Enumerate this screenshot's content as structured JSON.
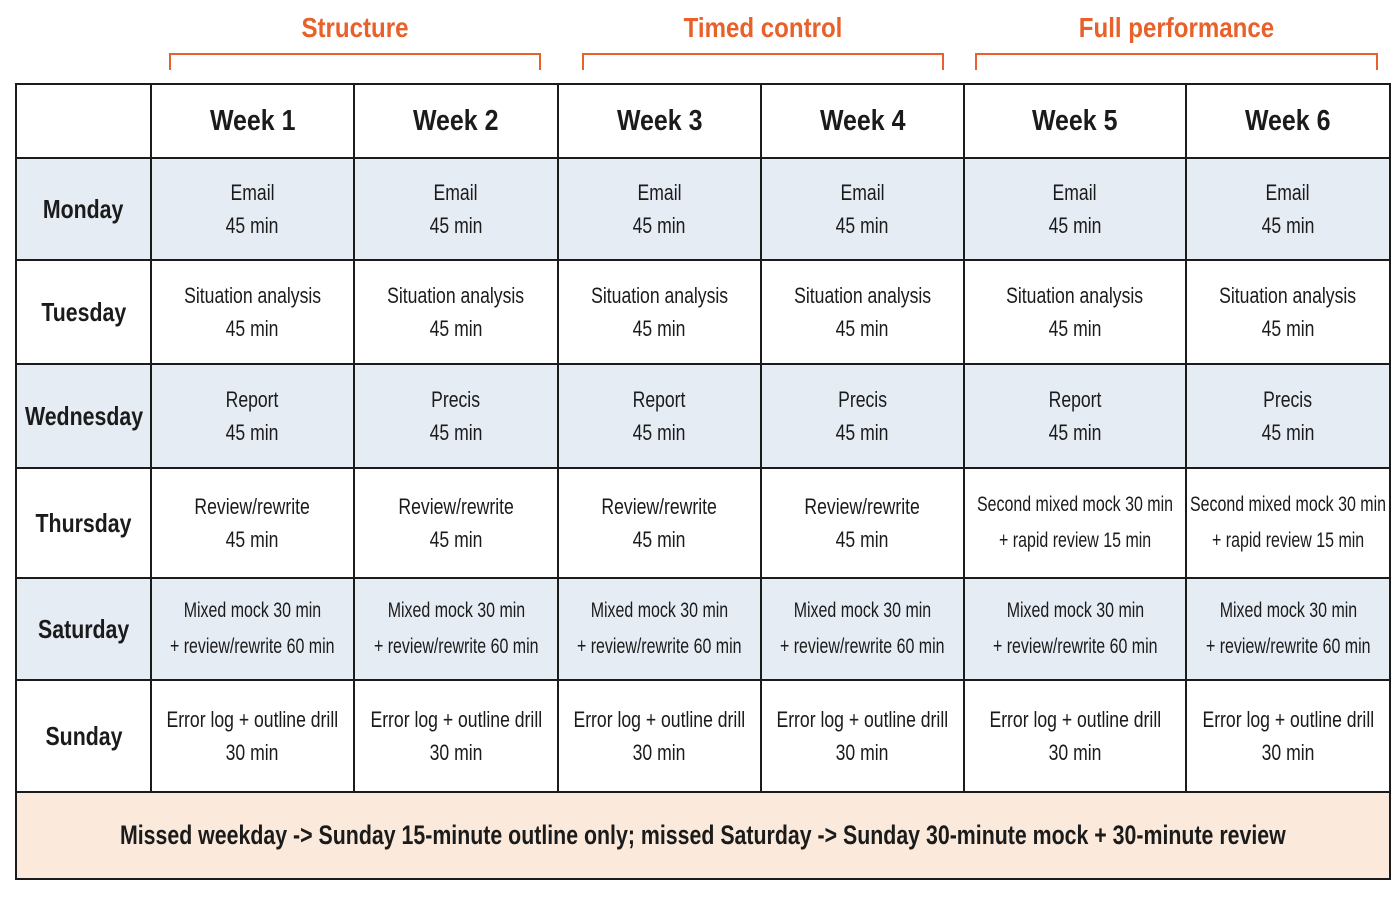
{
  "colors": {
    "accent": "#e8612a",
    "border": "#1b1b1b",
    "shaded_row": "#e6ecf4",
    "white_row": "#ffffff",
    "footer_bg": "#fbeadb"
  },
  "phases": [
    {
      "label": "Structure"
    },
    {
      "label": "Timed control"
    },
    {
      "label": "Full performance"
    }
  ],
  "table": {
    "corner": "",
    "headers": [
      "Week 1",
      "Week 2",
      "Week 3",
      "Week 4",
      "Week 5",
      "Week 6"
    ],
    "rows": [
      {
        "day": "Monday",
        "cells": [
          [
            "Email",
            "45 min"
          ],
          [
            "Email",
            "45 min"
          ],
          [
            "Email",
            "45 min"
          ],
          [
            "Email",
            "45 min"
          ],
          [
            "Email",
            "45 min"
          ],
          [
            "Email",
            "45 min"
          ]
        ]
      },
      {
        "day": "Tuesday",
        "cells": [
          [
            "Situation analysis",
            "45 min"
          ],
          [
            "Situation analysis",
            "45 min"
          ],
          [
            "Situation analysis",
            "45 min"
          ],
          [
            "Situation analysis",
            "45 min"
          ],
          [
            "Situation analysis",
            "45 min"
          ],
          [
            "Situation analysis",
            "45 min"
          ]
        ]
      },
      {
        "day": "Wednesday",
        "cells": [
          [
            "Report",
            "45 min"
          ],
          [
            "Precis",
            "45 min"
          ],
          [
            "Report",
            "45 min"
          ],
          [
            "Precis",
            "45 min"
          ],
          [
            "Report",
            "45 min"
          ],
          [
            "Precis",
            "45 min"
          ]
        ]
      },
      {
        "day": "Thursday",
        "cells": [
          [
            "Review/rewrite",
            "45 min"
          ],
          [
            "Review/rewrite",
            "45 min"
          ],
          [
            "Review/rewrite",
            "45 min"
          ],
          [
            "Review/rewrite",
            "45 min"
          ],
          [
            "Second mixed mock 30 min",
            "+ rapid review 15 min"
          ],
          [
            "Second mixed mock 30 min",
            "+ rapid review 15 min"
          ]
        ]
      },
      {
        "day": "Saturday",
        "cells": [
          [
            "Mixed mock 30 min",
            "+ review/rewrite 60 min"
          ],
          [
            "Mixed mock 30 min",
            "+ review/rewrite 60 min"
          ],
          [
            "Mixed mock 30 min",
            "+ review/rewrite 60 min"
          ],
          [
            "Mixed mock 30 min",
            "+ review/rewrite 60 min"
          ],
          [
            "Mixed mock 30 min",
            "+ review/rewrite 60 min"
          ],
          [
            "Mixed mock 30 min",
            "+ review/rewrite 60 min"
          ]
        ]
      },
      {
        "day": "Sunday",
        "cells": [
          [
            "Error log + outline drill",
            "30 min"
          ],
          [
            "Error log + outline drill",
            "30 min"
          ],
          [
            "Error log + outline drill",
            "30 min"
          ],
          [
            "Error log + outline drill",
            "30 min"
          ],
          [
            "Error log + outline drill",
            "30 min"
          ],
          [
            "Error log + outline drill",
            "30 min"
          ]
        ]
      }
    ]
  },
  "footer": {
    "note": "Missed weekday -> Sunday 15-minute outline only; missed Saturday -> Sunday 30-minute mock + 30-minute review"
  }
}
